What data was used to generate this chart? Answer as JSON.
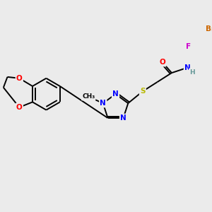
{
  "background_color": "#ebebeb",
  "atom_colors": {
    "C": "#000000",
    "N": "#0000ff",
    "O": "#ff0000",
    "S": "#b8b800",
    "F": "#cc00cc",
    "Br": "#cc6600",
    "H": "#669999"
  },
  "bond_lw": 1.4,
  "font_size": 7.5
}
